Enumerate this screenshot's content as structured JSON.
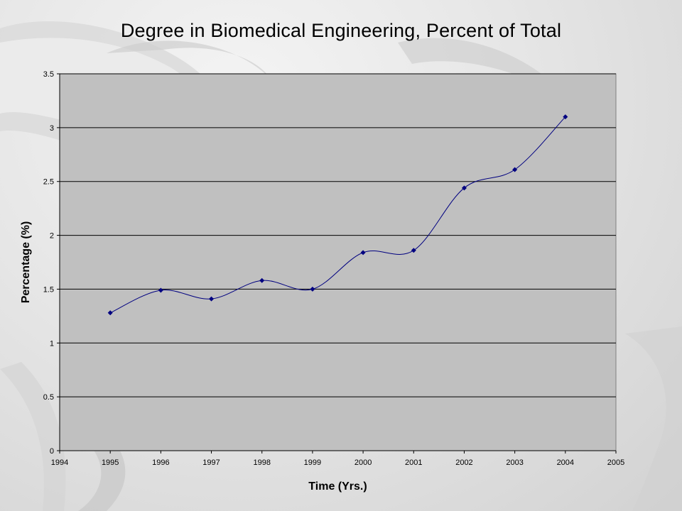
{
  "chart_data": {
    "type": "line",
    "title": "Degree in Biomedical Engineering, Percent of Total",
    "xlabel": "Time (Yrs.)",
    "ylabel": "Percentage (%)",
    "x": [
      1995,
      1996,
      1997,
      1998,
      1999,
      2000,
      2001,
      2002,
      2003,
      2004
    ],
    "series": [
      {
        "values": [
          1.28,
          1.49,
          1.41,
          1.58,
          1.5,
          1.84,
          1.86,
          2.44,
          2.61,
          3.1
        ]
      }
    ],
    "xlim": [
      1994,
      2005
    ],
    "ylim": [
      0,
      3.5
    ],
    "xticks": [
      "1994",
      "1995",
      "1996",
      "1997",
      "1998",
      "1999",
      "2000",
      "2001",
      "2002",
      "2003",
      "2004",
      "2005"
    ],
    "yticks": [
      "0",
      "0.5",
      "1",
      "1.5",
      "2",
      "2.5",
      "3",
      "3.5"
    ],
    "grid": "horizontal",
    "line_color": "#000080",
    "plot_background": "#c0c0c0",
    "gridline_color": "#000000"
  }
}
